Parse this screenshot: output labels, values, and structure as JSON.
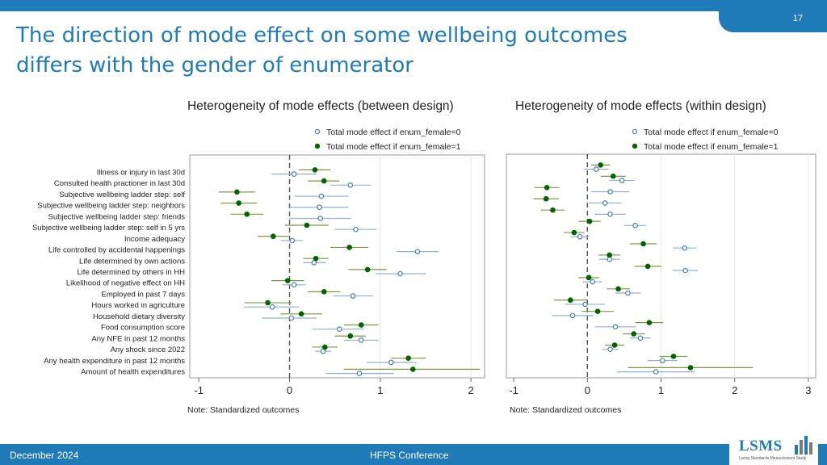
{
  "slide": {
    "page_number": "17",
    "title": "The direction of mode effect on some wellbeing outcomes differs with the gender of enumerator",
    "footer_date": "December 2024",
    "footer_conference": "HFPS Conference",
    "logo_text": "LSMS",
    "logo_subtitle": "Living Standards Measurement Study",
    "accent_color": "#1f7ab8"
  },
  "chart_data": [
    {
      "type": "scatter",
      "subtype": "coefficient-plot",
      "title": "Heterogeneity of mode effects (between design)",
      "note": "Note: Standardized outcomes",
      "xlim": [
        -1.1,
        2.15
      ],
      "xticks": [
        -1,
        0,
        1,
        2
      ],
      "reference_line_x": 0,
      "gridlines_x": [
        1,
        2
      ],
      "legend_position": "top-right",
      "categories": [
        "Illness or injury in last 30d",
        "Consulted health practioner in last 30d",
        "Subjective wellbeing ladder step: self",
        "Subjective wellbeing ladder step: neighbors",
        "Subjective wellbeing ladder step: friends",
        "Subjective wellbeing ladder step: self in 5 yrs",
        "Income adequacy",
        "Life controlled by accidental happenings",
        "Life determined by own actions",
        "Life determined by others in HH",
        "Likelihood of negative effect on HH",
        "Employed in past 7 days",
        "Hours worked in agriculture",
        "Household dietary diversity",
        "Food consumption score",
        "Any NFE in past 12 months",
        "Any shock since 2022",
        "Any health expenditure in past 12 months",
        "Amount of health expenditures"
      ],
      "series": [
        {
          "name": "Total mode effect if enum_female=0",
          "marker": "hollow-circle",
          "color": "#4a7fa8",
          "values": [
            0.05,
            0.67,
            0.35,
            0.33,
            0.34,
            0.73,
            0.03,
            1.41,
            0.27,
            1.22,
            0.05,
            0.7,
            -0.19,
            0.02,
            0.55,
            0.79,
            0.37,
            1.12,
            0.77
          ],
          "ci_low": [
            -0.2,
            0.45,
            0.05,
            0.0,
            0.0,
            0.5,
            -0.1,
            1.18,
            0.15,
            0.95,
            -0.08,
            0.48,
            -0.5,
            -0.3,
            0.25,
            0.6,
            0.28,
            0.85,
            0.4
          ],
          "ci_high": [
            0.3,
            0.9,
            0.65,
            0.65,
            0.68,
            0.96,
            0.15,
            1.64,
            0.4,
            1.5,
            0.18,
            0.92,
            0.1,
            0.3,
            0.82,
            0.98,
            0.46,
            1.4,
            1.15
          ]
        },
        {
          "name": "Total mode effect if enum_female=1",
          "marker": "filled-circle",
          "color": "#006400",
          "values": [
            0.28,
            0.38,
            -0.58,
            -0.56,
            -0.47,
            0.19,
            -0.18,
            0.66,
            0.29,
            0.86,
            -0.02,
            0.38,
            -0.24,
            0.13,
            0.79,
            0.67,
            0.39,
            1.31,
            1.36
          ],
          "ci_low": [
            0.1,
            0.2,
            -0.78,
            -0.76,
            -0.65,
            -0.05,
            -0.35,
            0.45,
            0.15,
            0.65,
            -0.2,
            0.2,
            -0.5,
            -0.1,
            0.6,
            0.5,
            0.25,
            1.12,
            0.6
          ],
          "ci_high": [
            0.45,
            0.55,
            -0.38,
            -0.36,
            -0.29,
            0.43,
            -0.01,
            0.87,
            0.43,
            1.07,
            0.16,
            0.56,
            0.02,
            0.36,
            0.98,
            0.84,
            0.53,
            1.5,
            2.1
          ]
        }
      ]
    },
    {
      "type": "scatter",
      "subtype": "coefficient-plot",
      "title": "Heterogeneity of mode effects (within design)",
      "note": "Note: Standardized outcomes",
      "xlim": [
        -1.1,
        3.1
      ],
      "xticks": [
        -1,
        0,
        1,
        2,
        3
      ],
      "reference_line_x": 0,
      "gridlines_x": [
        1,
        2,
        3
      ],
      "legend_position": "top-right",
      "categories": [
        "Illness or injury in last 30d",
        "Consulted health practioner in last 30d",
        "Subjective wellbeing ladder step: self",
        "Subjective wellbeing ladder step: neighbors",
        "Subjective wellbeing ladder step: friends",
        "Subjective wellbeing ladder step: self in 5 yrs",
        "Income adequacy",
        "Life controlled by accidental happenings",
        "Life determined by own actions",
        "Life determined by others in HH",
        "Likelihood of negative effect on HH",
        "Employed in past 7 days",
        "Hours worked in agriculture",
        "Household dietary diversity",
        "Food consumption score",
        "Any NFE in past 12 months",
        "Any shock since 2022",
        "Any health expenditure in past 12 months",
        "Amount of health expenditures"
      ],
      "series": [
        {
          "name": "Total mode effect if enum_female=0",
          "marker": "hollow-circle",
          "color": "#4a7fa8",
          "values": [
            0.12,
            0.47,
            0.31,
            0.24,
            0.31,
            0.65,
            -0.1,
            1.32,
            0.3,
            1.33,
            0.07,
            0.55,
            -0.03,
            -0.2,
            0.38,
            0.72,
            0.31,
            1.02,
            0.93
          ],
          "ci_low": [
            -0.05,
            0.3,
            0.05,
            0.02,
            0.1,
            0.5,
            -0.22,
            1.16,
            0.16,
            1.16,
            -0.06,
            0.38,
            -0.3,
            -0.48,
            0.1,
            0.58,
            0.2,
            0.82,
            0.4
          ],
          "ci_high": [
            0.29,
            0.64,
            0.57,
            0.46,
            0.52,
            0.8,
            0.02,
            1.48,
            0.44,
            1.5,
            0.2,
            0.72,
            0.24,
            0.08,
            0.66,
            0.86,
            0.42,
            1.22,
            1.46
          ]
        },
        {
          "name": "Total mode effect if enum_female=1",
          "marker": "filled-circle",
          "color": "#006400",
          "values": [
            0.18,
            0.35,
            -0.55,
            -0.56,
            -0.47,
            0.03,
            -0.18,
            0.76,
            0.3,
            0.82,
            0.02,
            0.42,
            -0.23,
            0.14,
            0.84,
            0.63,
            0.37,
            1.17,
            1.4
          ],
          "ci_low": [
            0.05,
            0.18,
            -0.72,
            -0.73,
            -0.63,
            -0.12,
            -0.32,
            0.58,
            0.15,
            0.64,
            -0.12,
            0.26,
            -0.45,
            -0.08,
            0.65,
            0.48,
            0.24,
            0.98,
            0.55
          ],
          "ci_high": [
            0.31,
            0.52,
            -0.38,
            -0.39,
            -0.31,
            0.18,
            -0.04,
            0.94,
            0.45,
            1.0,
            0.16,
            0.58,
            -0.01,
            0.36,
            1.03,
            0.78,
            0.5,
            1.36,
            2.25
          ]
        }
      ]
    }
  ]
}
